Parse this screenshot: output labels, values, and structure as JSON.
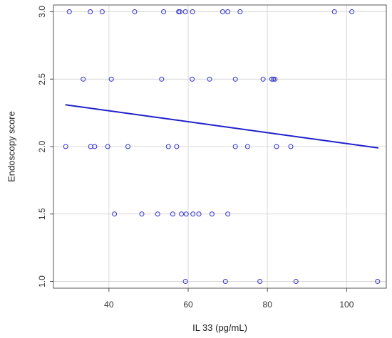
{
  "chart_data": {
    "type": "scatter",
    "title": "",
    "xlabel": "IL 33 (pg/mL)",
    "ylabel": "Endoscopy score",
    "xlim": [
      26,
      110
    ],
    "ylim": [
      0.95,
      3.05
    ],
    "xticks": [
      40,
      60,
      80,
      100
    ],
    "yticks": [
      1.0,
      1.5,
      2.0,
      2.5,
      3.0
    ],
    "ytick_labels": [
      "1.0",
      "1.5",
      "2.0",
      "2.5",
      "3.0"
    ],
    "grid": true,
    "point_color": "#3333cc",
    "line_color": "#2020cc",
    "points": [
      {
        "x": 30.0,
        "y": 3.0
      },
      {
        "x": 35.3,
        "y": 3.0
      },
      {
        "x": 38.3,
        "y": 3.0
      },
      {
        "x": 46.5,
        "y": 3.0
      },
      {
        "x": 53.8,
        "y": 3.0
      },
      {
        "x": 57.6,
        "y": 3.0
      },
      {
        "x": 57.9,
        "y": 3.0
      },
      {
        "x": 59.3,
        "y": 3.0
      },
      {
        "x": 61.1,
        "y": 3.0
      },
      {
        "x": 68.7,
        "y": 3.0
      },
      {
        "x": 70.0,
        "y": 3.0
      },
      {
        "x": 73.1,
        "y": 3.0
      },
      {
        "x": 96.9,
        "y": 3.0
      },
      {
        "x": 101.3,
        "y": 3.0
      },
      {
        "x": 33.5,
        "y": 2.5
      },
      {
        "x": 40.6,
        "y": 2.5
      },
      {
        "x": 53.3,
        "y": 2.5
      },
      {
        "x": 61.0,
        "y": 2.5
      },
      {
        "x": 65.4,
        "y": 2.5
      },
      {
        "x": 71.9,
        "y": 2.5
      },
      {
        "x": 78.9,
        "y": 2.5
      },
      {
        "x": 81.1,
        "y": 2.5
      },
      {
        "x": 81.5,
        "y": 2.5
      },
      {
        "x": 81.9,
        "y": 2.5
      },
      {
        "x": 29.1,
        "y": 2.0
      },
      {
        "x": 35.4,
        "y": 2.0
      },
      {
        "x": 36.4,
        "y": 2.0
      },
      {
        "x": 39.7,
        "y": 2.0
      },
      {
        "x": 44.8,
        "y": 2.0
      },
      {
        "x": 55.0,
        "y": 2.0
      },
      {
        "x": 57.1,
        "y": 2.0
      },
      {
        "x": 71.9,
        "y": 2.0
      },
      {
        "x": 75.0,
        "y": 2.0
      },
      {
        "x": 82.3,
        "y": 2.0
      },
      {
        "x": 85.9,
        "y": 2.0
      },
      {
        "x": 41.4,
        "y": 1.5
      },
      {
        "x": 48.3,
        "y": 1.5
      },
      {
        "x": 52.3,
        "y": 1.5
      },
      {
        "x": 56.1,
        "y": 1.5
      },
      {
        "x": 58.3,
        "y": 1.5
      },
      {
        "x": 59.5,
        "y": 1.5
      },
      {
        "x": 61.2,
        "y": 1.5
      },
      {
        "x": 62.7,
        "y": 1.5
      },
      {
        "x": 66.0,
        "y": 1.5
      },
      {
        "x": 70.0,
        "y": 1.5
      },
      {
        "x": 59.3,
        "y": 1.0
      },
      {
        "x": 69.4,
        "y": 1.0
      },
      {
        "x": 78.1,
        "y": 1.0
      },
      {
        "x": 87.2,
        "y": 1.0
      },
      {
        "x": 107.8,
        "y": 1.0
      }
    ],
    "regression_line": {
      "x": [
        29.0,
        108.0
      ],
      "y": [
        2.31,
        1.99
      ]
    }
  }
}
